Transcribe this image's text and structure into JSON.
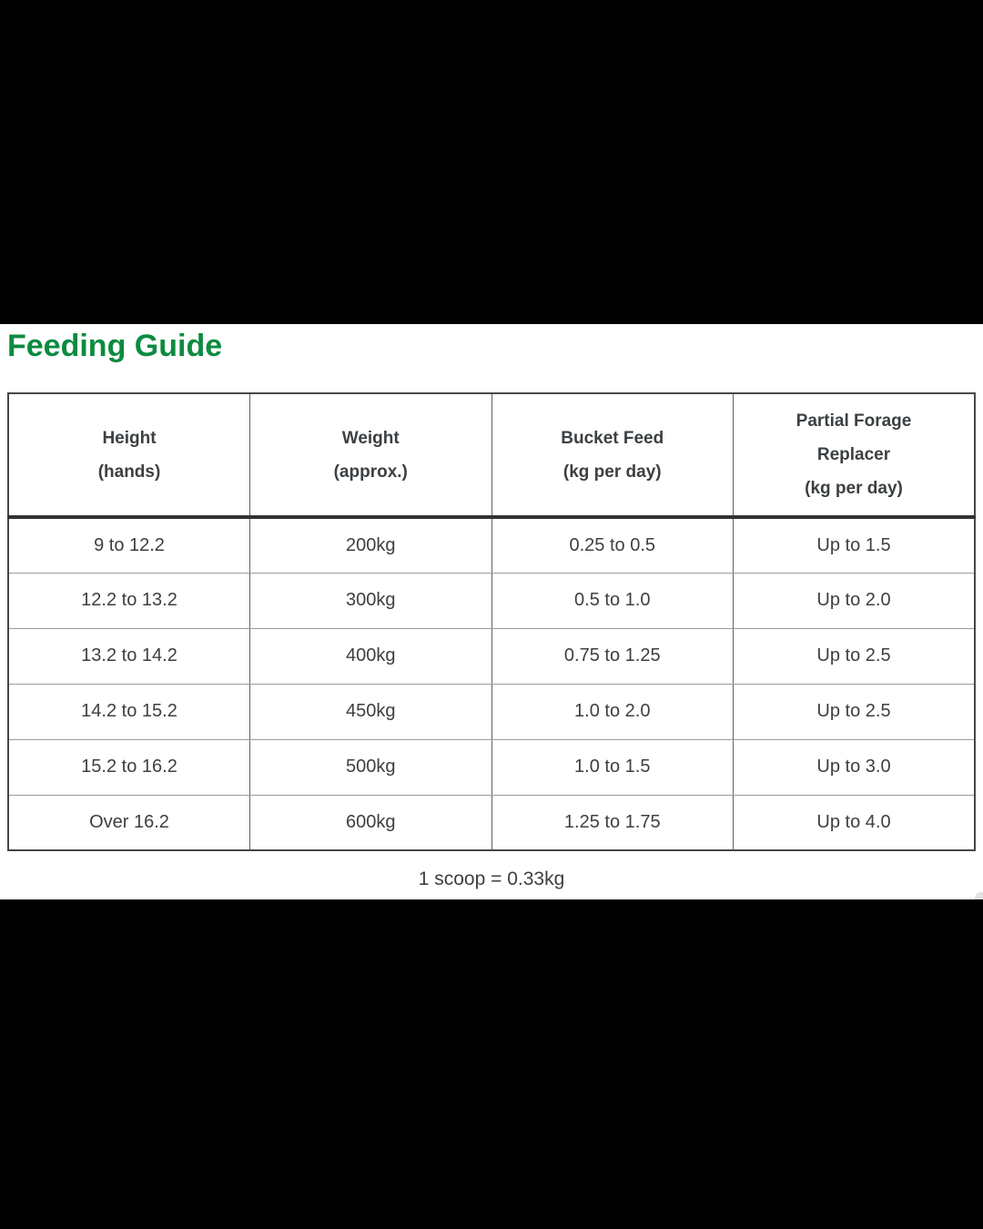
{
  "page": {
    "letterbox_color": "#000000",
    "content_background": "#ffffff",
    "accent_green": "#0c8b40",
    "text_color": "#3c4043"
  },
  "title": {
    "text": "Feeding Guide"
  },
  "table": {
    "headers": [
      {
        "lines": [
          "Height",
          "(hands)"
        ]
      },
      {
        "lines": [
          "Weight",
          "(approx.)"
        ]
      },
      {
        "lines": [
          "Bucket Feed",
          "(kg per day)"
        ]
      },
      {
        "lines": [
          "Partial Forage",
          "Replacer",
          "(kg per day)"
        ]
      }
    ],
    "rows": [
      [
        "9 to 12.2",
        "200kg",
        "0.25 to 0.5",
        "Up to 1.5"
      ],
      [
        "12.2 to 13.2",
        "300kg",
        "0.5 to 1.0",
        "Up to 2.0"
      ],
      [
        "13.2 to 14.2",
        "400kg",
        "0.75 to 1.25",
        "Up to 2.5"
      ],
      [
        "14.2 to 15.2",
        "450kg",
        "1.0 to 2.0",
        "Up to 2.5"
      ],
      [
        "15.2 to 16.2",
        "500kg",
        "1.0 to 1.5",
        "Up to 3.0"
      ],
      [
        "Over 16.2",
        "600kg",
        "1.25 to 1.75",
        "Up to 4.0"
      ]
    ]
  },
  "footer": {
    "note": "1 scoop = 0.33kg"
  }
}
